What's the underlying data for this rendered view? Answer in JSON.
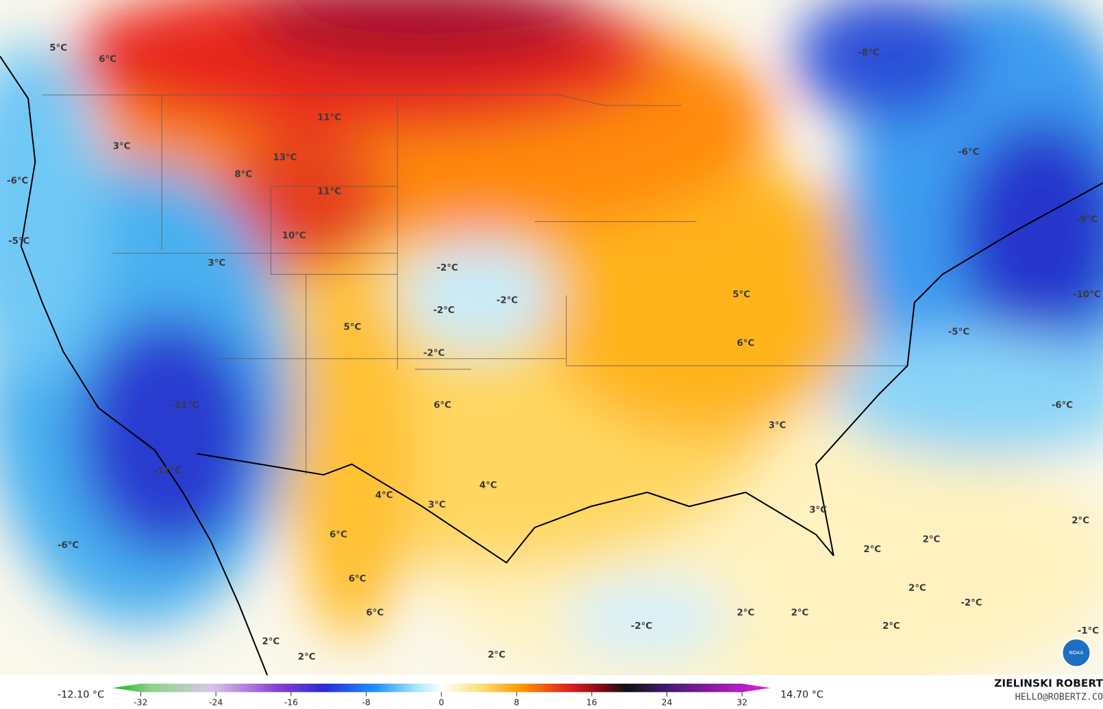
{
  "map": {
    "labels": [
      "5°C",
      "6°C",
      "3°C",
      "-6°C",
      "-5°C",
      "11°C",
      "13°C",
      "8°C",
      "11°C",
      "10°C",
      "3°C",
      "-2°C",
      "-2°C",
      "-2°C",
      "5°C",
      "-2°C",
      "-11°C",
      "6°C",
      "-11°C",
      "4°C",
      "4°C",
      "3°C",
      "6°C",
      "-6°C",
      "6°C",
      "6°C",
      "2°C",
      "2°C",
      "2°C",
      "-8°C",
      "-6°C",
      "-9°C",
      "-10°C",
      "-5°C",
      "5°C",
      "6°C",
      "-6°C",
      "3°C",
      "3°C",
      "2°C",
      "2°C",
      "2°C",
      "2°C",
      "-2°C",
      "2°C",
      "2°C",
      "2°C",
      "-2°C",
      "-1°C"
    ]
  },
  "colorbar": {
    "min_label": "-12.10 °C",
    "max_label": "14.70 °C",
    "range": [
      -35,
      35
    ],
    "ticks": [
      -32,
      -24,
      -16,
      -8,
      0,
      8,
      16,
      24,
      32
    ]
  },
  "credits": {
    "author": "ZIELINSKI ROBERT",
    "contact": "HELLO@ROBERTZ.CO",
    "logo": "NOAA"
  }
}
